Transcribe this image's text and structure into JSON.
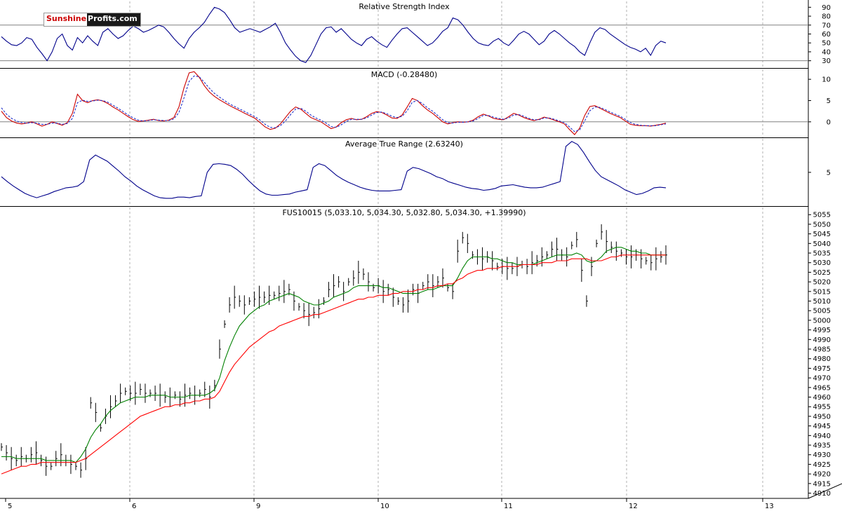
{
  "logo": {
    "part1": "Sunshine",
    "part2": "Profits.com"
  },
  "chart_data": [
    {
      "type": "line",
      "title": "Relative Strength Index",
      "ylim": [
        25,
        95
      ],
      "yticks": [
        30,
        40,
        50,
        60,
        70,
        80,
        90
      ],
      "hlines": [
        70,
        30
      ],
      "series": [
        {
          "color": "#00008b",
          "values": [
            57,
            52,
            48,
            47,
            50,
            56,
            54,
            45,
            38,
            30,
            40,
            55,
            60,
            47,
            42,
            56,
            50,
            58,
            52,
            47,
            62,
            66,
            60,
            55,
            58,
            64,
            69,
            66,
            62,
            64,
            67,
            70,
            68,
            62,
            55,
            49,
            44,
            55,
            62,
            67,
            73,
            82,
            90,
            88,
            84,
            76,
            67,
            62,
            64,
            66,
            64,
            62,
            65,
            68,
            72,
            62,
            50,
            42,
            35,
            30,
            28,
            36,
            48,
            60,
            67,
            68,
            62,
            66,
            60,
            54,
            50,
            47,
            54,
            57,
            52,
            48,
            45,
            53,
            60,
            66,
            67,
            62,
            57,
            52,
            47,
            50,
            56,
            63,
            67,
            78,
            76,
            70,
            62,
            55,
            50,
            48,
            47,
            52,
            55,
            50,
            47,
            53,
            60,
            63,
            60,
            54,
            48,
            52,
            60,
            64,
            60,
            55,
            50,
            46,
            40,
            36,
            50,
            62,
            67,
            65,
            60,
            56,
            52,
            48,
            45,
            43,
            40,
            44,
            36,
            47,
            52,
            50
          ]
        }
      ]
    },
    {
      "type": "line",
      "title": "MACD (-0.28480)",
      "ylim": [
        -3,
        12
      ],
      "yticks": [
        0,
        5,
        10
      ],
      "hlines": [
        0
      ],
      "series": [
        {
          "color": "#cc0000",
          "values": [
            2.5,
            1.0,
            0.2,
            -0.3,
            -0.5,
            -0.3,
            0.0,
            -0.5,
            -1.0,
            -0.6,
            0,
            -0.4,
            -0.8,
            -0.2,
            2.0,
            6.5,
            5.0,
            4.5,
            5.0,
            5.2,
            4.9,
            4.3,
            3.5,
            2.8,
            2.0,
            1.2,
            0.5,
            0.1,
            0.2,
            0.4,
            0.6,
            0.3,
            0.2,
            0.4,
            1.0,
            3.5,
            8.0,
            11.5,
            11.8,
            10.5,
            8.5,
            7.0,
            6.0,
            5.2,
            4.5,
            3.8,
            3.2,
            2.6,
            2.0,
            1.4,
            0.8,
            -0.2,
            -1.2,
            -1.8,
            -1.5,
            -0.5,
            1.0,
            2.5,
            3.5,
            3.0,
            2.0,
            1.0,
            0.5,
            0,
            -0.8,
            -1.6,
            -1.2,
            -0.2,
            0.5,
            0.8,
            0.5,
            0.6,
            1.2,
            2.0,
            2.4,
            2.2,
            1.6,
            0.9,
            0.8,
            1.6,
            3.5,
            5.5,
            5.0,
            3.8,
            2.8,
            2.0,
            1.0,
            0,
            -0.5,
            -0.2,
            0,
            -0.1,
            0,
            0.4,
            1.2,
            1.8,
            1.4,
            0.8,
            0.6,
            0.5,
            1.2,
            2.0,
            1.6,
            1.0,
            0.6,
            0.3,
            0.6,
            1.1,
            0.8,
            0.4,
            0,
            -0.5,
            -1.8,
            -3.0,
            -1.5,
            1.5,
            3.6,
            3.8,
            3.2,
            2.6,
            2.0,
            1.5,
            1.0,
            0.2,
            -0.6,
            -0.8,
            -0.9,
            -0.9,
            -1.0,
            -0.8,
            -0.6,
            -0.3
          ]
        },
        {
          "color": "#2233cc",
          "dashed": true,
          "values": [
            3.3,
            1.8,
            0.8,
            0.2,
            -0.2,
            -0.3,
            -0.2,
            -0.3,
            -0.6,
            -0.6,
            -0.3,
            -0.3,
            -0.6,
            -0.4,
            0.8,
            4.5,
            5.1,
            4.8,
            4.9,
            5.1,
            5.0,
            4.6,
            3.9,
            3.2,
            2.4,
            1.6,
            0.9,
            0.4,
            0.2,
            0.3,
            0.5,
            0.4,
            0.3,
            0.3,
            0.7,
            2.2,
            5.6,
            9.5,
            10.8,
            10.6,
            9.3,
            7.9,
            6.7,
            5.8,
            5.0,
            4.2,
            3.6,
            3.0,
            2.4,
            1.8,
            1.2,
            0.4,
            -0.6,
            -1.3,
            -1.4,
            -0.9,
            0.2,
            1.7,
            3.0,
            3.2,
            2.5,
            1.6,
            0.9,
            0.4,
            -0.3,
            -1.1,
            -1.3,
            -0.7,
            0.1,
            0.6,
            0.6,
            0.6,
            0.9,
            1.6,
            2.2,
            2.3,
            1.9,
            1.3,
            1.0,
            1.3,
            2.6,
            4.6,
            5.0,
            4.3,
            3.3,
            2.5,
            1.5,
            0.5,
            -0.2,
            -0.3,
            -0.1,
            -0.1,
            0,
            0.2,
            0.8,
            1.5,
            1.5,
            1.1,
            0.8,
            0.6,
            0.9,
            1.6,
            1.7,
            1.3,
            0.8,
            0.5,
            0.5,
            0.9,
            0.9,
            0.6,
            0.2,
            -0.2,
            -1.2,
            -2.3,
            -1.9,
            0.2,
            2.6,
            3.5,
            3.4,
            2.9,
            2.3,
            1.8,
            1.3,
            0.6,
            -0.2,
            -0.6,
            -0.8,
            -0.9,
            -0.9,
            -0.9,
            -0.7,
            -0.5
          ]
        }
      ]
    },
    {
      "type": "line",
      "title": "Average True Range (2.63240)",
      "ylim": [
        0,
        10.2
      ],
      "yticks": [
        5
      ],
      "series": [
        {
          "color": "#00008b",
          "values": [
            4.3,
            3.5,
            2.8,
            2.2,
            1.6,
            1.2,
            0.9,
            1.2,
            1.5,
            1.9,
            2.2,
            2.5,
            2.6,
            2.8,
            3.5,
            7.0,
            7.8,
            7.3,
            6.8,
            6.0,
            5.2,
            4.3,
            3.6,
            2.8,
            2.2,
            1.7,
            1.2,
            0.9,
            0.8,
            0.8,
            1.0,
            1.0,
            0.9,
            1.1,
            1.2,
            5.0,
            6.3,
            6.4,
            6.3,
            6.1,
            5.5,
            4.7,
            3.7,
            2.8,
            2.0,
            1.5,
            1.3,
            1.3,
            1.4,
            1.5,
            1.8,
            2.0,
            2.2,
            5.8,
            6.4,
            6.1,
            5.3,
            4.5,
            3.9,
            3.4,
            3.0,
            2.6,
            2.3,
            2.1,
            2.0,
            2.0,
            2.0,
            2.1,
            2.2,
            5.2,
            5.8,
            5.6,
            5.2,
            4.8,
            4.3,
            4.0,
            3.5,
            3.2,
            2.9,
            2.6,
            2.4,
            2.3,
            2.1,
            2.2,
            2.4,
            2.8,
            2.9,
            3.0,
            2.8,
            2.6,
            2.5,
            2.5,
            2.6,
            2.9,
            3.2,
            3.5,
            9.2,
            10.0,
            9.5,
            8.2,
            6.7,
            5.3,
            4.3,
            3.8,
            3.3,
            2.8,
            2.2,
            1.8,
            1.4,
            1.6,
            2.0,
            2.5,
            2.6,
            2.5
          ]
        }
      ]
    },
    {
      "type": "line",
      "title": "FUS10015 (5,033.10, 5,034.30, 5,032.80, 5,034.30, +1.39990)",
      "ylim": [
        4908,
        5058
      ],
      "yticks": [
        4910,
        4915,
        4920,
        4925,
        4930,
        4935,
        4940,
        4945,
        4950,
        4955,
        4960,
        4965,
        4970,
        4975,
        4980,
        4985,
        4990,
        4995,
        5000,
        5005,
        5010,
        5015,
        5020,
        5025,
        5030,
        5035,
        5040,
        5045,
        5050,
        5055
      ],
      "x_labels": [
        "5",
        "6",
        "9",
        "10",
        "11",
        "12",
        "13"
      ],
      "series": [
        {
          "name": "",
          "color": "#000000",
          "style": "bars",
          "values": [
            4934,
            4931,
            4928,
            4927,
            4929,
            4928,
            4930,
            4931,
            4927,
            4924,
            4924,
            4928,
            4930,
            4927,
            4925,
            4924,
            4922,
            4928,
            4957,
            4952,
            4944,
            4950,
            4955,
            4958,
            4962,
            4963,
            4962,
            4962,
            4964,
            4962,
            4962,
            4962,
            4961,
            4960,
            4960,
            4961,
            4959,
            4961,
            4962,
            4961,
            4962,
            4964,
            4960,
            4966,
            4985,
            4998,
            5008,
            5012,
            5010,
            5008,
            5010,
            5011,
            5012,
            5012,
            5013,
            5013,
            5014,
            5015,
            5016,
            5010,
            5007,
            5005,
            5003,
            5004,
            5006,
            5010,
            5016,
            5018,
            5020,
            5015,
            5020,
            5022,
            5025,
            5024,
            5020,
            5017,
            5018,
            5015,
            5016,
            5012,
            5010,
            5008,
            5010,
            5016,
            5014,
            5018,
            5020,
            5018,
            5020,
            5022,
            5017,
            5015,
            5036,
            5043,
            5040,
            5034,
            5033,
            5032,
            5033,
            5031,
            5028,
            5028,
            5027,
            5027,
            5028,
            5029,
            5028,
            5030,
            5031,
            5033,
            5034,
            5037,
            5037,
            5034,
            5033,
            5039,
            5042,
            5026,
            5010,
            5028,
            5040,
            5046,
            5041,
            5038,
            5036,
            5035,
            5033,
            5033,
            5034,
            5032,
            5031,
            5030,
            5032,
            5033,
            5034
          ]
        },
        {
          "name": "",
          "color": "#008000",
          "values": [
            4929,
            4929,
            4929,
            4928,
            4928,
            4928,
            4928,
            4928,
            4928,
            4927,
            4927,
            4927,
            4927,
            4927,
            4927,
            4926,
            4929,
            4933,
            4939,
            4943,
            4946,
            4950,
            4953,
            4955,
            4957,
            4958,
            4959,
            4960,
            4960,
            4960,
            4961,
            4961,
            4961,
            4961,
            4960,
            4960,
            4960,
            4960,
            4961,
            4961,
            4961,
            4961,
            4962,
            4964,
            4970,
            4979,
            4986,
            4992,
            4997,
            5000,
            5003,
            5005,
            5007,
            5008,
            5010,
            5011,
            5012,
            5013,
            5014,
            5013,
            5012,
            5010,
            5009,
            5008,
            5008,
            5009,
            5010,
            5012,
            5013,
            5014,
            5015,
            5017,
            5018,
            5018,
            5018,
            5018,
            5018,
            5017,
            5017,
            5016,
            5015,
            5014,
            5014,
            5014,
            5014,
            5015,
            5016,
            5016,
            5017,
            5018,
            5018,
            5018,
            5022,
            5027,
            5031,
            5033,
            5033,
            5033,
            5033,
            5032,
            5032,
            5031,
            5030,
            5030,
            5029,
            5029,
            5029,
            5029,
            5030,
            5031,
            5032,
            5033,
            5034,
            5034,
            5034,
            5034,
            5035,
            5034,
            5031,
            5030,
            5031,
            5033,
            5036,
            5037,
            5038,
            5038,
            5037,
            5036,
            5036,
            5035,
            5035,
            5034,
            5034,
            5034,
            5034
          ]
        },
        {
          "name": "",
          "color": "#ff0000",
          "values": [
            4920,
            4921,
            4922,
            4923,
            4924,
            4924,
            4925,
            4925,
            4926,
            4926,
            4926,
            4926,
            4926,
            4926,
            4926,
            4926,
            4927,
            4928,
            4930,
            4932,
            4934,
            4936,
            4938,
            4940,
            4942,
            4944,
            4946,
            4948,
            4950,
            4951,
            4952,
            4953,
            4954,
            4955,
            4955,
            4956,
            4956,
            4957,
            4957,
            4958,
            4958,
            4959,
            4959,
            4960,
            4963,
            4968,
            4973,
            4977,
            4980,
            4983,
            4986,
            4988,
            4990,
            4992,
            4994,
            4995,
            4997,
            4998,
            4999,
            5000,
            5001,
            5002,
            5002,
            5003,
            5003,
            5004,
            5005,
            5006,
            5007,
            5008,
            5009,
            5010,
            5011,
            5011,
            5012,
            5012,
            5013,
            5013,
            5013,
            5014,
            5014,
            5015,
            5015,
            5015,
            5016,
            5016,
            5017,
            5017,
            5018,
            5018,
            5019,
            5019,
            5021,
            5022,
            5024,
            5025,
            5026,
            5026,
            5027,
            5027,
            5027,
            5028,
            5028,
            5028,
            5028,
            5029,
            5029,
            5029,
            5029,
            5030,
            5030,
            5030,
            5031,
            5031,
            5031,
            5032,
            5032,
            5032,
            5032,
            5031,
            5031,
            5031,
            5032,
            5033,
            5033,
            5034,
            5034,
            5034,
            5034,
            5034,
            5034,
            5034,
            5034,
            5034,
            5034
          ]
        }
      ]
    }
  ]
}
